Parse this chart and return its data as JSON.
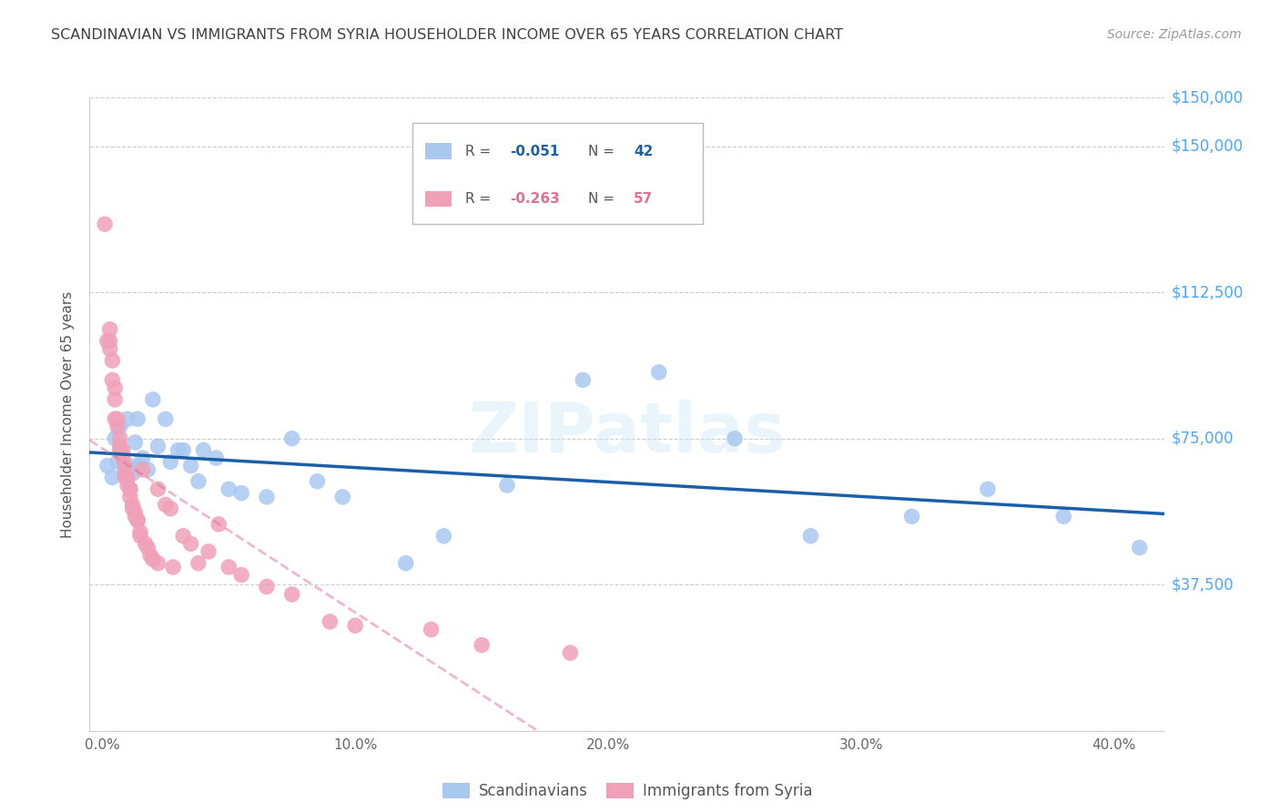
{
  "title": "SCANDINAVIAN VS IMMIGRANTS FROM SYRIA HOUSEHOLDER INCOME OVER 65 YEARS CORRELATION CHART",
  "source": "Source: ZipAtlas.com",
  "ylabel": "Householder Income Over 65 years",
  "xlabel_ticks": [
    "0.0%",
    "10.0%",
    "20.0%",
    "30.0%",
    "40.0%"
  ],
  "xlabel_vals": [
    0.0,
    0.1,
    0.2,
    0.3,
    0.4
  ],
  "ytick_labels": [
    "$37,500",
    "$75,000",
    "$112,500",
    "$150,000"
  ],
  "ytick_vals": [
    37500,
    75000,
    112500,
    150000
  ],
  "ylim": [
    0,
    162500
  ],
  "xlim": [
    -0.005,
    0.42
  ],
  "scand_color": "#a8c8f0",
  "syria_color": "#f0a0b8",
  "scand_line_color": "#1a5fa8",
  "syria_line_color": "#e07090",
  "background_color": "#ffffff",
  "grid_color": "#cccccc",
  "title_color": "#404040",
  "source_color": "#999999",
  "ytick_color": "#4da6ff",
  "scand_x": [
    0.002,
    0.004,
    0.006,
    0.007,
    0.008,
    0.009,
    0.01,
    0.011,
    0.012,
    0.013,
    0.014,
    0.015,
    0.016,
    0.018,
    0.02,
    0.022,
    0.025,
    0.03,
    0.032,
    0.035,
    0.038,
    0.04,
    0.045,
    0.05,
    0.055,
    0.065,
    0.085,
    0.095,
    0.12,
    0.135,
    0.16,
    0.19,
    0.22,
    0.25,
    0.28,
    0.32,
    0.35,
    0.38,
    0.41,
    0.005,
    0.027,
    0.075
  ],
  "scand_y": [
    68000,
    65000,
    69000,
    78000,
    71000,
    67000,
    80000,
    68000,
    66000,
    74000,
    80000,
    68000,
    70000,
    67000,
    85000,
    73000,
    80000,
    72000,
    72000,
    68000,
    64000,
    72000,
    70000,
    62000,
    61000,
    60000,
    64000,
    60000,
    43000,
    50000,
    63000,
    90000,
    92000,
    75000,
    50000,
    55000,
    62000,
    55000,
    47000,
    75000,
    69000,
    75000
  ],
  "syria_x": [
    0.001,
    0.002,
    0.003,
    0.003,
    0.004,
    0.004,
    0.005,
    0.005,
    0.006,
    0.006,
    0.007,
    0.007,
    0.008,
    0.008,
    0.009,
    0.009,
    0.01,
    0.01,
    0.011,
    0.011,
    0.012,
    0.012,
    0.013,
    0.013,
    0.014,
    0.015,
    0.015,
    0.016,
    0.017,
    0.018,
    0.019,
    0.02,
    0.022,
    0.025,
    0.028,
    0.032,
    0.035,
    0.038,
    0.042,
    0.046,
    0.05,
    0.055,
    0.065,
    0.075,
    0.09,
    0.1,
    0.13,
    0.15,
    0.185,
    0.003,
    0.005,
    0.007,
    0.009,
    0.011,
    0.014,
    0.022,
    0.027
  ],
  "syria_y": [
    130000,
    100000,
    103000,
    98000,
    95000,
    90000,
    88000,
    85000,
    80000,
    78000,
    75000,
    73000,
    72000,
    70000,
    68000,
    66000,
    65000,
    63000,
    62000,
    60000,
    58000,
    57000,
    56000,
    55000,
    54000,
    51000,
    50000,
    67000,
    48000,
    47000,
    45000,
    44000,
    62000,
    58000,
    42000,
    50000,
    48000,
    43000,
    46000,
    53000,
    42000,
    40000,
    37000,
    35000,
    28000,
    27000,
    26000,
    22000,
    20000,
    100000,
    80000,
    72000,
    65000,
    62000,
    54000,
    43000,
    57000
  ]
}
